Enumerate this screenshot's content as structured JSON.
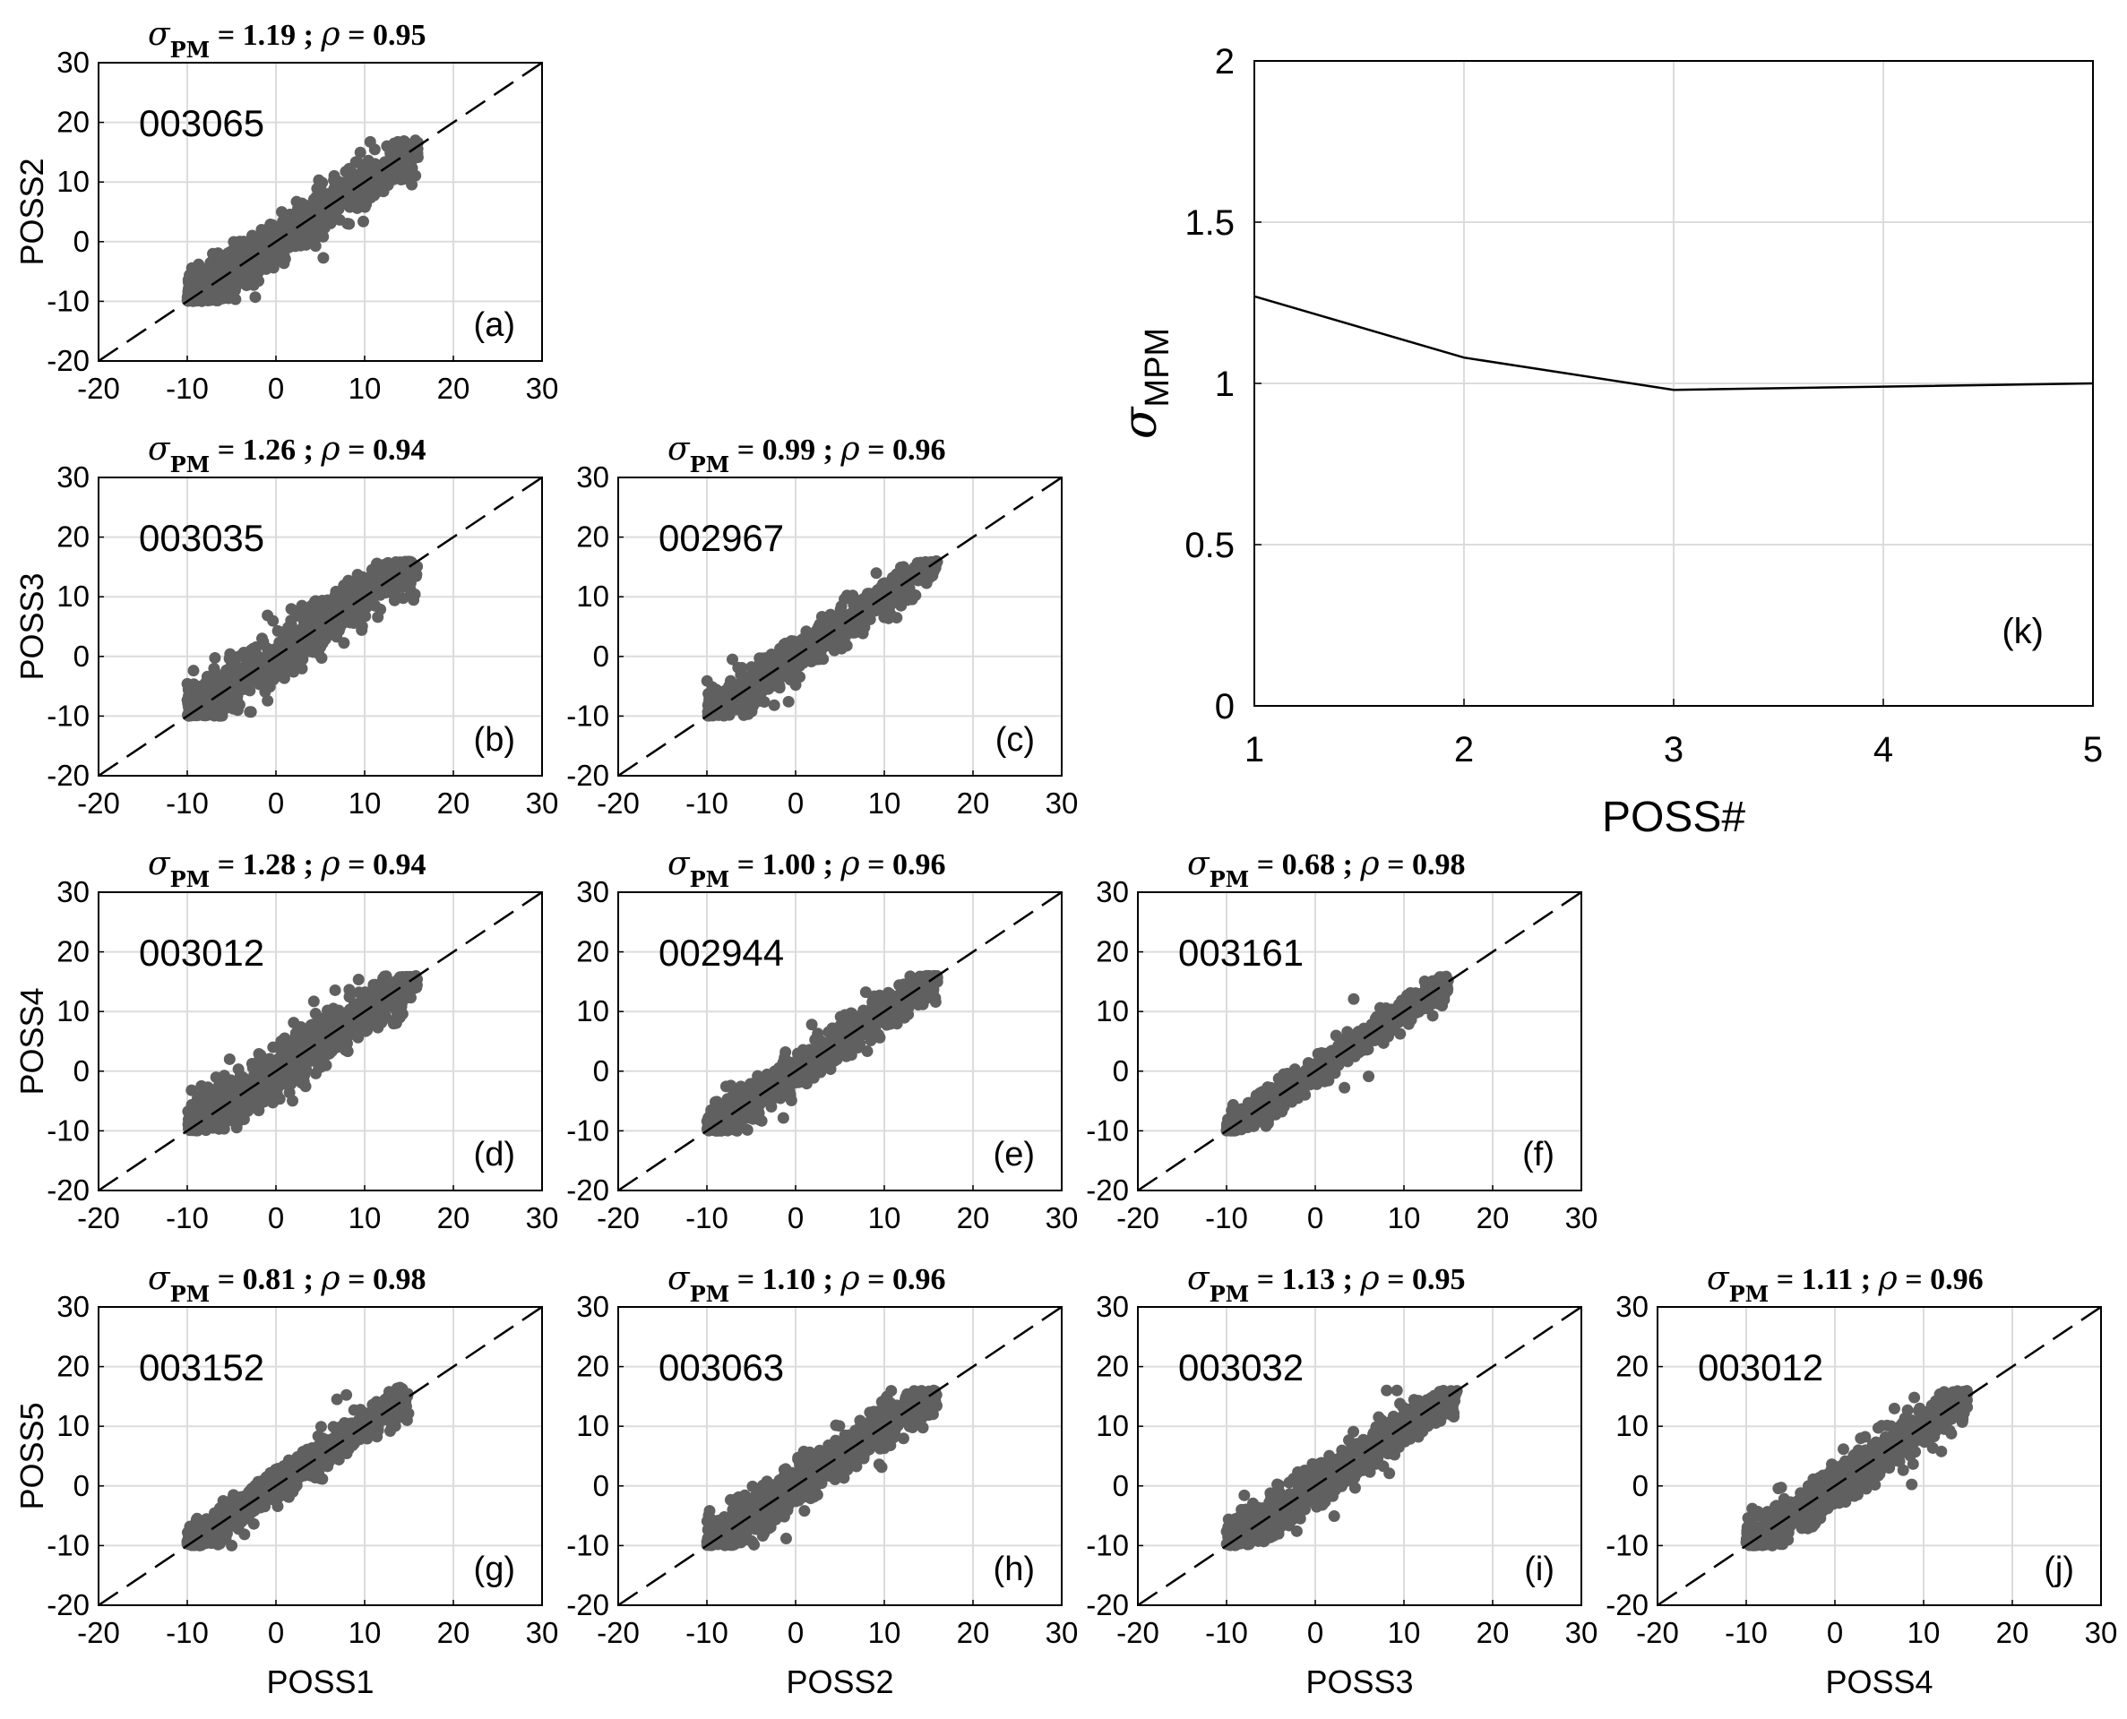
{
  "figure": {
    "scatter_axis_ticks": [
      "-20",
      "-10",
      "0",
      "10",
      "20",
      "30"
    ],
    "scatter_axis_range": [
      -20,
      30
    ],
    "row_ylabels": [
      "POSS2",
      "POSS3",
      "POSS4",
      "POSS5"
    ],
    "col_xlabels": [
      "POSS1",
      "POSS2",
      "POSS3",
      "POSS4"
    ],
    "point_color": "#606060",
    "grid_color": "#dcdcdc",
    "title_sigma": "σ",
    "title_sub": "PM",
    "title_rho": "ρ"
  },
  "chart_data": [
    {
      "type": "scatter",
      "panel_tag": "(a)",
      "id_label": "003065",
      "sigma_text": " = 1.19 ; ",
      "rho_text": " = 0.95",
      "sigma_pm": 1.19,
      "rho": 0.95,
      "x_label": "POSS1",
      "y_label": "POSS2",
      "xlim": [
        -20,
        30
      ],
      "ylim": [
        -20,
        30
      ],
      "reference_line": "y = x (dashed)",
      "spread": 1.19,
      "x_range": [
        -10,
        16
      ],
      "y_range": [
        -10,
        17
      ]
    },
    {
      "type": "scatter",
      "panel_tag": "(b)",
      "id_label": "003035",
      "sigma_text": " = 1.26 ; ",
      "rho_text": " = 0.94",
      "sigma_pm": 1.26,
      "rho": 0.94,
      "x_label": "POSS1",
      "y_label": "POSS3",
      "xlim": [
        -20,
        30
      ],
      "ylim": [
        -20,
        30
      ],
      "reference_line": "y = x (dashed)",
      "spread": 1.26,
      "x_range": [
        -10,
        16
      ],
      "y_range": [
        -10,
        16
      ]
    },
    {
      "type": "scatter",
      "panel_tag": "(c)",
      "id_label": "002967",
      "sigma_text": " = 0.99 ; ",
      "rho_text": " = 0.96",
      "sigma_pm": 0.99,
      "rho": 0.96,
      "x_label": "POSS2",
      "y_label": "POSS3",
      "xlim": [
        -20,
        30
      ],
      "ylim": [
        -20,
        30
      ],
      "reference_line": "y = x (dashed)",
      "spread": 0.99,
      "x_range": [
        -10,
        16
      ],
      "y_range": [
        -10,
        16
      ]
    },
    {
      "type": "scatter",
      "panel_tag": "(d)",
      "id_label": "003012",
      "sigma_text": " = 1.28 ; ",
      "rho_text": " = 0.94",
      "sigma_pm": 1.28,
      "rho": 0.94,
      "x_label": "POSS1",
      "y_label": "POSS4",
      "xlim": [
        -20,
        30
      ],
      "ylim": [
        -20,
        30
      ],
      "reference_line": "y = x (dashed)",
      "spread": 1.28,
      "x_range": [
        -10,
        16
      ],
      "y_range": [
        -10,
        16
      ]
    },
    {
      "type": "scatter",
      "panel_tag": "(e)",
      "id_label": "002944",
      "sigma_text": " = 1.00 ; ",
      "rho_text": " = 0.96",
      "sigma_pm": 1.0,
      "rho": 0.96,
      "x_label": "POSS2",
      "y_label": "POSS4",
      "xlim": [
        -20,
        30
      ],
      "ylim": [
        -20,
        30
      ],
      "reference_line": "y = x (dashed)",
      "spread": 1.0,
      "x_range": [
        -10,
        16
      ],
      "y_range": [
        -10,
        16
      ]
    },
    {
      "type": "scatter",
      "panel_tag": "(f)",
      "id_label": "003161",
      "sigma_text": " = 0.68 ; ",
      "rho_text": " = 0.98",
      "sigma_pm": 0.68,
      "rho": 0.98,
      "x_label": "POSS3",
      "y_label": "POSS4",
      "xlim": [
        -20,
        30
      ],
      "ylim": [
        -20,
        30
      ],
      "reference_line": "y = x (dashed)",
      "spread": 0.68,
      "x_range": [
        -10,
        15
      ],
      "y_range": [
        -10,
        16
      ]
    },
    {
      "type": "scatter",
      "panel_tag": "(g)",
      "id_label": "003152",
      "sigma_text": " = 0.81 ; ",
      "rho_text": " = 0.98",
      "sigma_pm": 0.81,
      "rho": 0.98,
      "x_label": "POSS1",
      "y_label": "POSS5",
      "xlim": [
        -20,
        30
      ],
      "ylim": [
        -20,
        30
      ],
      "reference_line": "y = x (dashed)",
      "spread": 0.81,
      "x_range": [
        -10,
        15
      ],
      "y_range": [
        -10,
        17
      ]
    },
    {
      "type": "scatter",
      "panel_tag": "(h)",
      "id_label": "003063",
      "sigma_text": " = 1.10 ; ",
      "rho_text": " = 0.96",
      "sigma_pm": 1.1,
      "rho": 0.96,
      "x_label": "POSS2",
      "y_label": "POSS5",
      "xlim": [
        -20,
        30
      ],
      "ylim": [
        -20,
        30
      ],
      "reference_line": "y = x (dashed)",
      "spread": 1.1,
      "x_range": [
        -10,
        16
      ],
      "y_range": [
        -10,
        16
      ]
    },
    {
      "type": "scatter",
      "panel_tag": "(i)",
      "id_label": "003032",
      "sigma_text": " = 1.13 ; ",
      "rho_text": " = 0.95",
      "sigma_pm": 1.13,
      "rho": 0.95,
      "x_label": "POSS3",
      "y_label": "POSS5",
      "xlim": [
        -20,
        30
      ],
      "ylim": [
        -20,
        30
      ],
      "reference_line": "y = x (dashed)",
      "spread": 1.13,
      "x_range": [
        -10,
        16
      ],
      "y_range": [
        -10,
        16
      ]
    },
    {
      "type": "scatter",
      "panel_tag": "(j)",
      "id_label": "003012",
      "sigma_text": " = 1.11 ; ",
      "rho_text": " = 0.96",
      "sigma_pm": 1.11,
      "rho": 0.96,
      "x_label": "POSS4",
      "y_label": "POSS5",
      "xlim": [
        -20,
        30
      ],
      "ylim": [
        -20,
        30
      ],
      "reference_line": "y = x (dashed)",
      "spread": 1.11,
      "x_range": [
        -10,
        15
      ],
      "y_range": [
        -10,
        16
      ]
    },
    {
      "type": "line",
      "panel_tag": "(k)",
      "x": [
        1,
        2,
        3,
        4,
        5
      ],
      "values": [
        1.27,
        1.08,
        0.98,
        0.99,
        1.0
      ],
      "x_ticks": [
        "1",
        "2",
        "3",
        "4",
        "5"
      ],
      "y_ticks": [
        "0",
        "0.5",
        "1",
        "1.5",
        "2"
      ],
      "xlim": [
        1,
        5
      ],
      "ylim": [
        0,
        2
      ],
      "xlabel": "POSS#",
      "ylabel_symbol": "σ",
      "ylabel_sub": "MPM",
      "grid": true
    }
  ]
}
